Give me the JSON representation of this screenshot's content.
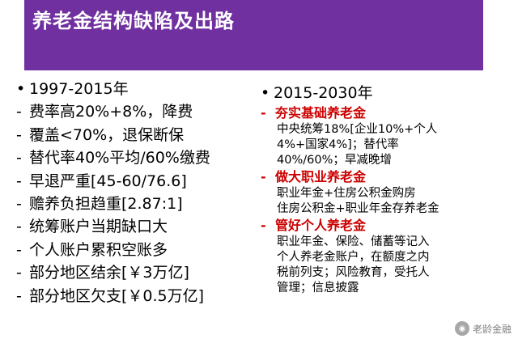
{
  "slide": {
    "title": "养老金结构缺陷及出路",
    "left": {
      "header": "1997-2015年",
      "items": [
        "费率高20%+8%，降费",
        "覆盖<70%，退保断保",
        "替代率40%平均/60%缴费",
        "早退严重[45-60/76.6]",
        "赡养负担趋重[2.87:1]",
        "统筹账户当期缺口大",
        "个人账户累积空账多",
        "部分地区结余[￥3万亿]",
        "部分地区欠支[￥0.5万亿]"
      ]
    },
    "right": {
      "header": "2015-2030年",
      "sections": [
        {
          "heading": "夯实基础养老金",
          "lines": [
            "中央统筹18%[企业10%+个人",
            "4%+国家4%]；替代率",
            "40%/60%；早减晚增"
          ]
        },
        {
          "heading": "做大职业养老金",
          "lines": [
            "职业年金+住房公积金购房",
            "住房公积金+职业年金存养老金"
          ]
        },
        {
          "heading": "管好个人养老金",
          "lines": [
            "职业年金、保险、储蓄等记入",
            "个人养老金账户，在额度之内",
            "税前列支；风险教育，受托人",
            "管理；信息披露"
          ]
        }
      ]
    },
    "watermark": "老龄金融",
    "colors": {
      "title_bg": "#7030a0",
      "title_text": "#ffffff",
      "heading_red": "#cc0000"
    }
  }
}
